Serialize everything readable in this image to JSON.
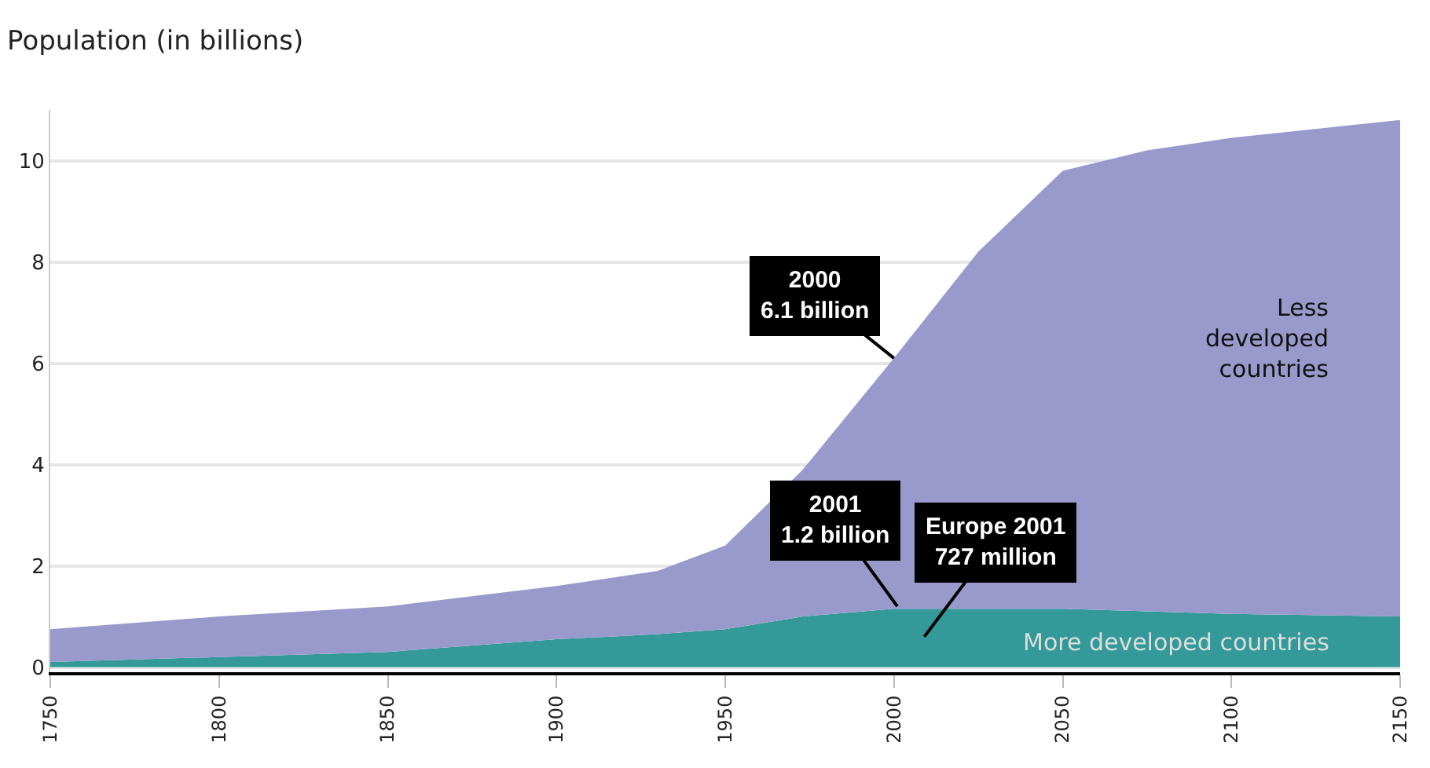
{
  "chart_data": {
    "type": "area",
    "stacked": true,
    "title": "Population (in billions)",
    "x": [
      1750,
      1800,
      1850,
      1900,
      1930,
      1950,
      1973,
      2000,
      2025,
      2050,
      2075,
      2100,
      2150
    ],
    "series": [
      {
        "name": "More developed countries",
        "color": "#339999",
        "values": [
          0.1,
          0.2,
          0.3,
          0.55,
          0.65,
          0.75,
          1.0,
          1.15,
          1.15,
          1.15,
          1.1,
          1.05,
          1.0
        ]
      },
      {
        "name": "Less developed countries",
        "color": "#9999cc",
        "values": [
          0.65,
          0.8,
          0.9,
          1.05,
          1.25,
          1.65,
          2.9,
          4.95,
          7.05,
          8.65,
          9.1,
          9.4,
          9.8
        ]
      }
    ],
    "annotations": [
      {
        "text": "2000\n6.1 billion",
        "x": 2000,
        "y": 6.1
      },
      {
        "text": "2001\n1.2 billion",
        "x": 2001,
        "y": 1.2
      },
      "Europe 2001\n727 million"
    ],
    "xlim": [
      1750,
      2150
    ],
    "xticks": [
      1750,
      1800,
      1850,
      1900,
      1950,
      2000,
      2050,
      2100,
      2150
    ],
    "ylim": [
      -0.1,
      11
    ],
    "yticks": [
      0,
      2,
      4,
      6,
      8,
      10
    ],
    "grid": "y",
    "legend": false
  }
}
